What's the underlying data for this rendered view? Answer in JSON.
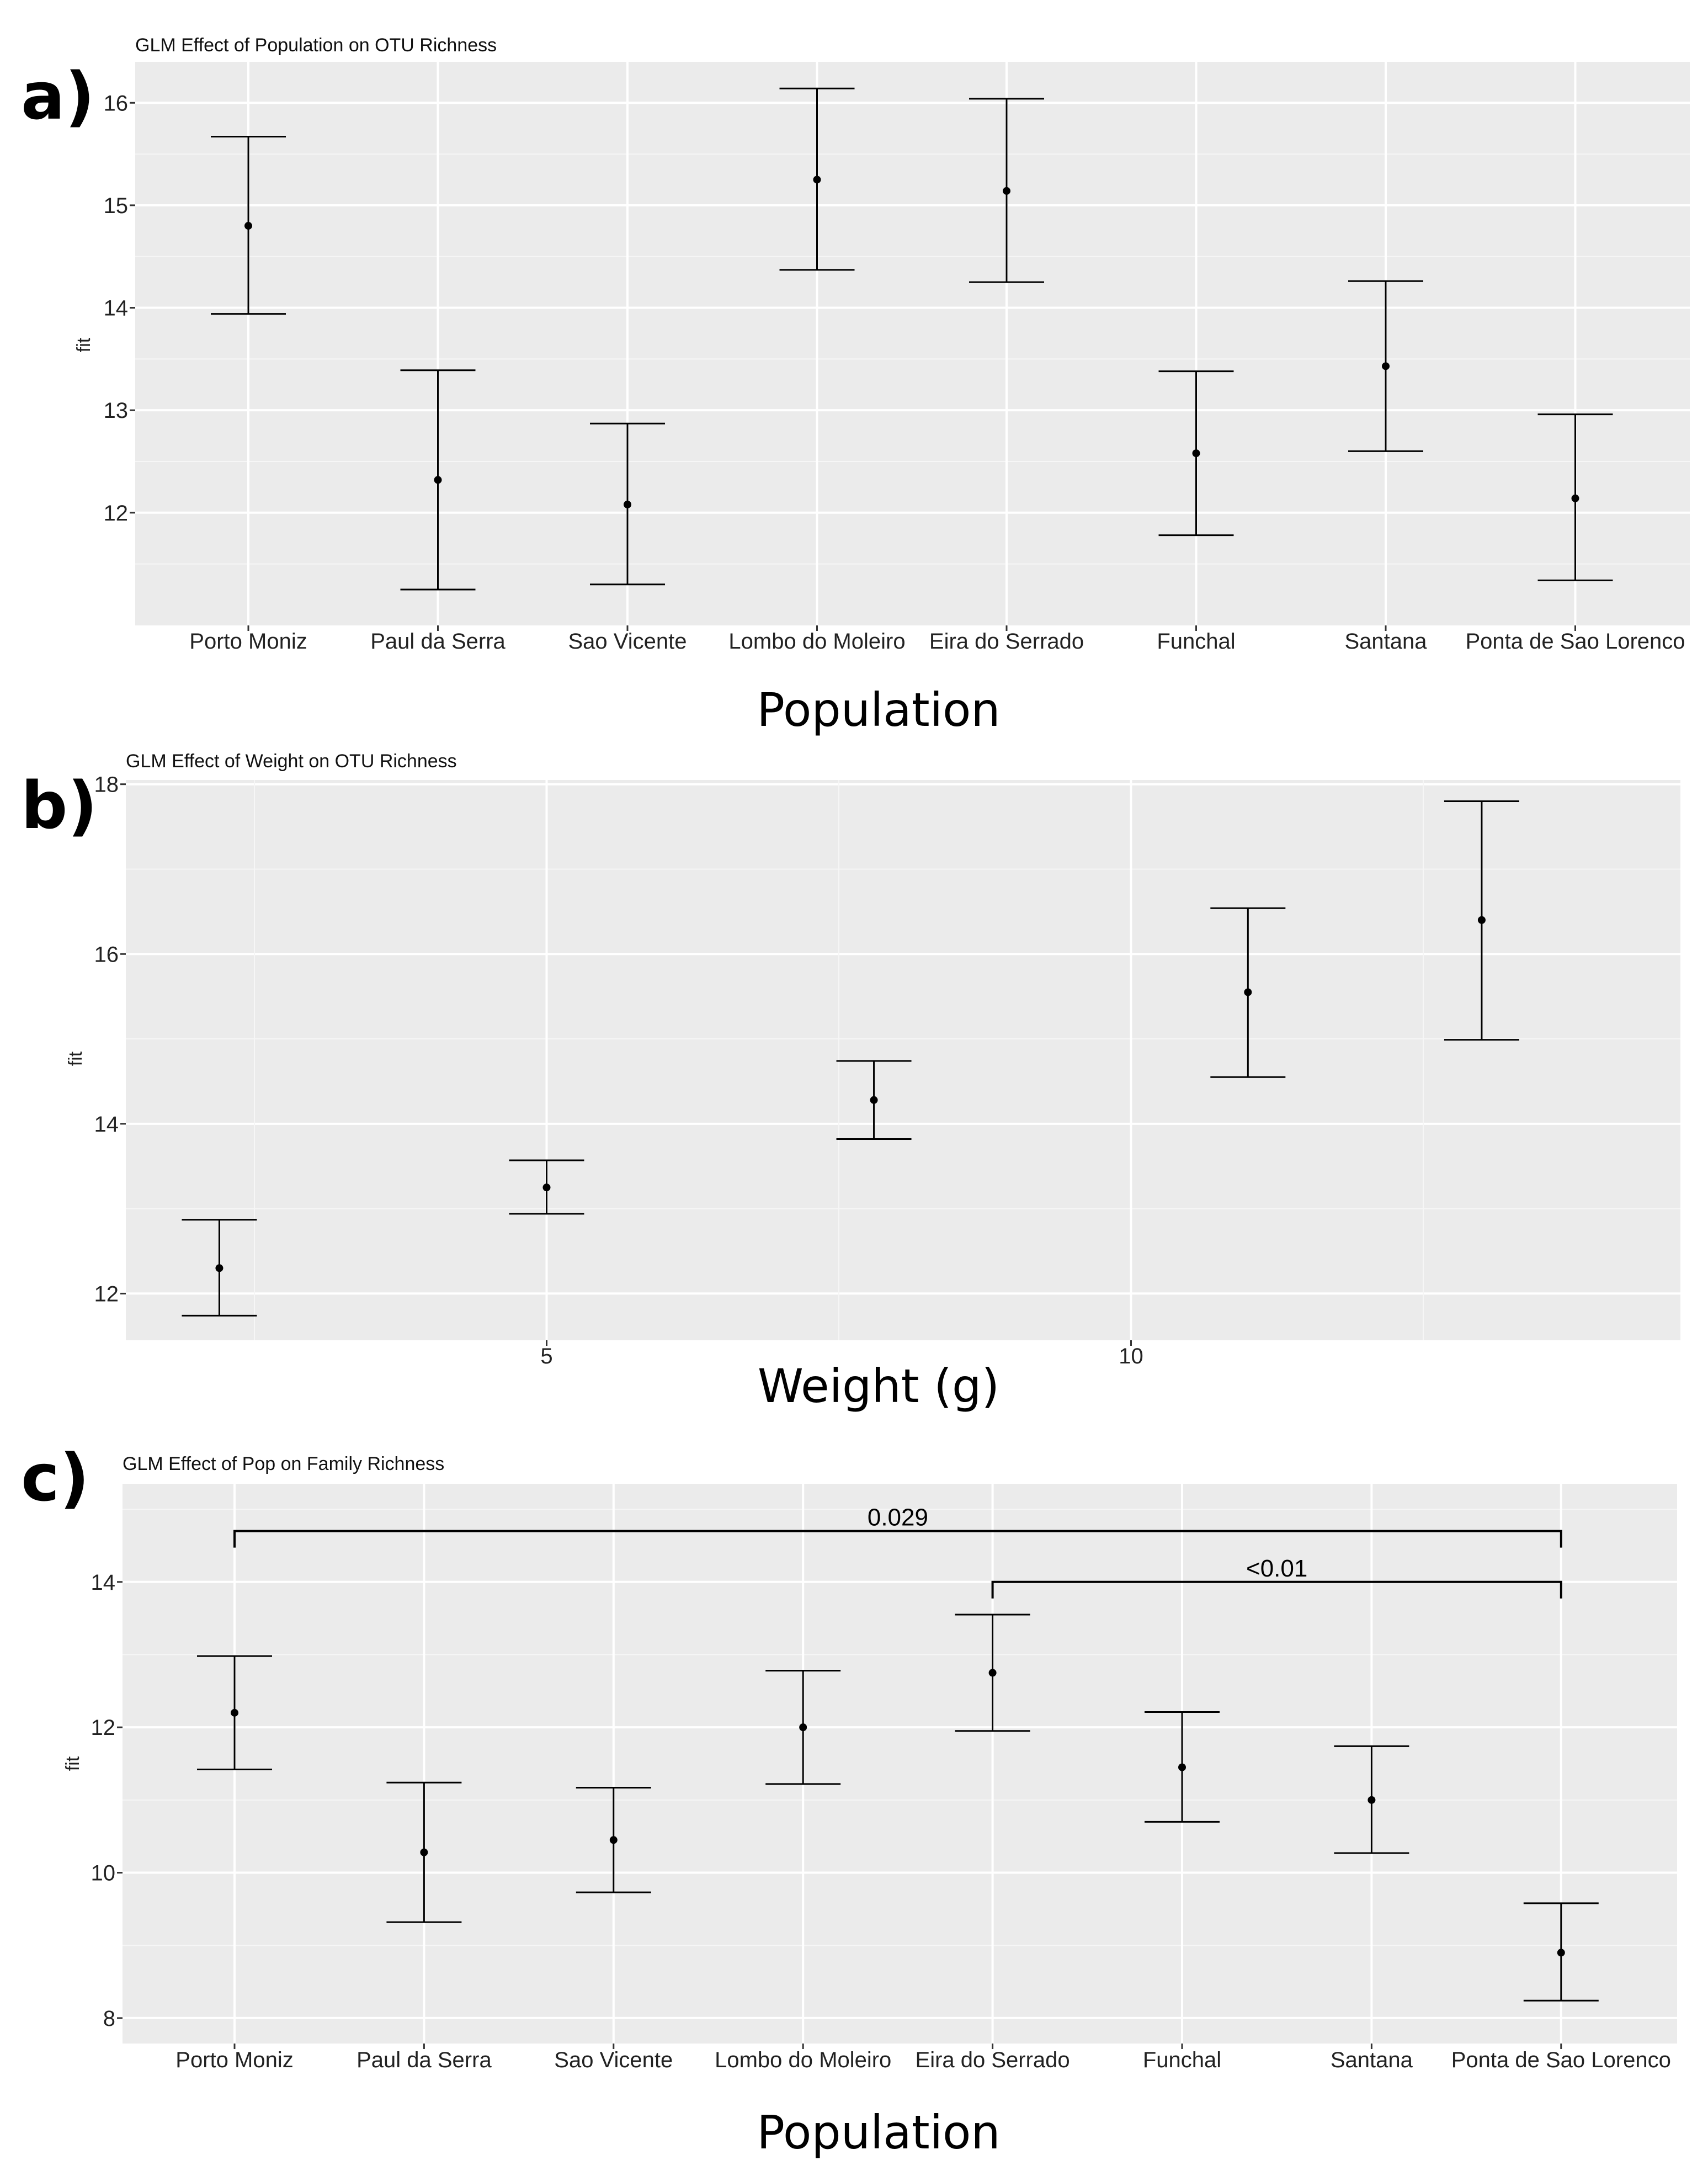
{
  "figure": {
    "panels": [
      {
        "letter": "a)",
        "xlabel": "Population",
        "ylabel": "fit",
        "title": "GLM Effect of Population on OTU Richness"
      },
      {
        "letter": "b)",
        "xlabel": "Weight (g)",
        "ylabel": "fit",
        "title": "GLM Effect of Weight on OTU Richness"
      },
      {
        "letter": "c)",
        "xlabel": "Population",
        "ylabel": "fit",
        "title": "GLM Effect of Pop on Family Richness"
      }
    ]
  },
  "chart_data": [
    {
      "type": "errorbar",
      "title": "GLM Effect of Population on OTU Richness",
      "xlabel": "Population",
      "ylabel": "fit",
      "ylim": [
        10.9,
        16.4
      ],
      "yticks": [
        12,
        13,
        14,
        15,
        16
      ],
      "grid": true,
      "categories": [
        "Porto Moniz",
        "Paul da Serra",
        "Sao Vicente",
        "Lombo do Moleiro",
        "Eira do Serrado",
        "Funchal",
        "Santana",
        "Ponta de Sao Lorenco"
      ],
      "fit": [
        14.8,
        12.32,
        12.08,
        15.25,
        15.14,
        12.58,
        13.43,
        12.14
      ],
      "lower": [
        13.94,
        11.25,
        11.3,
        14.37,
        14.25,
        11.78,
        12.6,
        11.34
      ],
      "upper": [
        15.67,
        13.39,
        12.87,
        16.14,
        16.04,
        13.38,
        14.26,
        12.96
      ]
    },
    {
      "type": "errorbar",
      "title": "GLM Effect of Weight on OTU Richness",
      "xlabel": "Weight (g)",
      "ylabel": "fit",
      "xlim": [
        1.4,
        14.7
      ],
      "ylim": [
        11.45,
        18.05
      ],
      "xticks": [
        5,
        10
      ],
      "yticks": [
        12,
        14,
        16,
        18
      ],
      "grid": true,
      "x": [
        2.2,
        5.0,
        7.8,
        11.0,
        13.0
      ],
      "fit": [
        12.3,
        13.25,
        14.28,
        15.55,
        16.4
      ],
      "lower": [
        11.74,
        12.94,
        13.82,
        14.55,
        14.99
      ],
      "upper": [
        12.87,
        13.57,
        14.74,
        16.54,
        17.8
      ]
    },
    {
      "type": "errorbar",
      "title": "GLM Effect of Pop on Family Richness",
      "xlabel": "Population",
      "ylabel": "fit",
      "ylim": [
        7.65,
        15.35
      ],
      "yticks": [
        8,
        10,
        12,
        14
      ],
      "grid": true,
      "categories": [
        "Porto Moniz",
        "Paul da Serra",
        "Sao Vicente",
        "Lombo do Moleiro",
        "Eira do Serrado",
        "Funchal",
        "Santana",
        "Ponta de Sao Lorenco"
      ],
      "fit": [
        12.2,
        10.28,
        10.45,
        12.0,
        12.75,
        11.45,
        11.0,
        8.9
      ],
      "lower": [
        11.42,
        9.32,
        9.73,
        11.22,
        11.95,
        10.7,
        10.27,
        8.24
      ],
      "upper": [
        12.98,
        11.24,
        11.17,
        12.78,
        13.55,
        12.21,
        11.74,
        9.58
      ],
      "annotations": [
        {
          "label": "0.029",
          "from": "Porto Moniz",
          "to": "Ponta de Sao Lorenco",
          "y": 14.7
        },
        {
          "label": "<0.01",
          "from": "Eira do Serrado",
          "to": "Ponta de Sao Lorenco",
          "y": 14.0
        }
      ]
    }
  ]
}
